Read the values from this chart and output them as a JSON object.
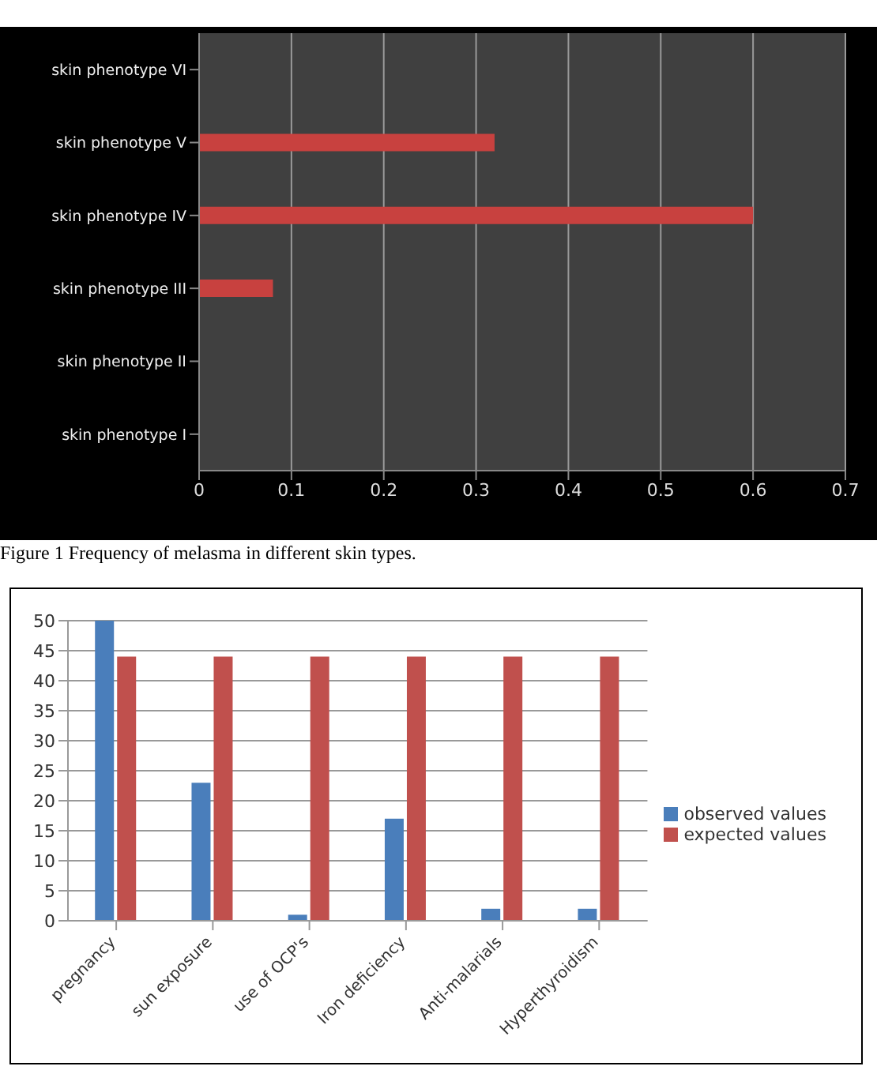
{
  "chart_data": [
    {
      "type": "bar",
      "orientation": "horizontal",
      "categories": [
        "skin phenotype VI",
        "skin phenotype V",
        "skin phenotype IV",
        "skin phenotype III",
        "skin phenotype II",
        "skin phenotype I"
      ],
      "values": [
        0,
        0.32,
        0.6,
        0.08,
        0,
        0
      ],
      "color": "#c8413f",
      "xlim": [
        0,
        0.7
      ],
      "xticks": [
        0,
        0.1,
        0.2,
        0.3,
        0.4,
        0.5,
        0.6,
        0.7
      ],
      "grid": "x",
      "annotations": [
        "Figure 1 Frequency of melasma in different skin types."
      ]
    },
    {
      "type": "bar",
      "categories": [
        "pregnancy",
        "sun exposure",
        "use of OCP's",
        "Iron deficiency",
        "Anti-malarials",
        "Hyperthyroidism"
      ],
      "series": [
        {
          "name": "observed values",
          "color": "#4a7ebb",
          "values": [
            50,
            23,
            1,
            17,
            2,
            2
          ]
        },
        {
          "name": "expected values",
          "color": "#c0504d",
          "values": [
            44,
            44,
            44,
            44,
            44,
            44
          ]
        }
      ],
      "ylim": [
        0,
        50
      ],
      "yticks": [
        0,
        5,
        10,
        15,
        20,
        25,
        30,
        35,
        40,
        45,
        50
      ],
      "grid": "y",
      "legend": "right"
    }
  ]
}
